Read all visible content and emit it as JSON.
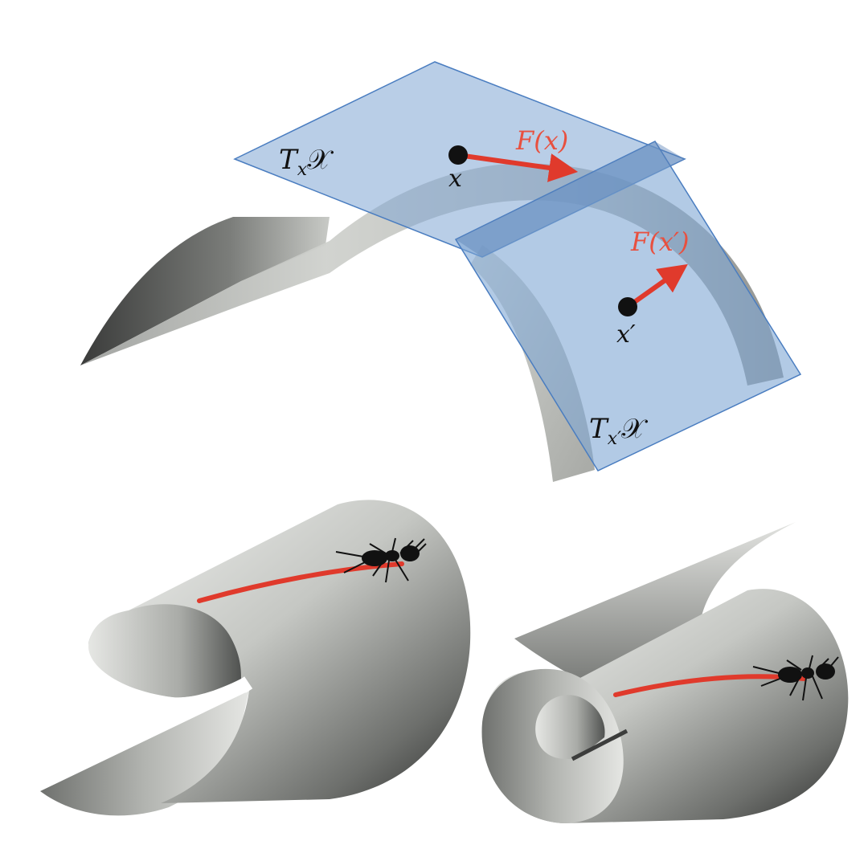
{
  "labels": {
    "tangent_space_x": "T",
    "tangent_space_x_sub": "x",
    "tangent_space_x_set": "𝒳",
    "tangent_space_xp": "T",
    "tangent_space_xp_sub": "x′",
    "tangent_space_xp_set": "𝒳",
    "point_x": "x",
    "point_xp": "x′",
    "vector_x": "F(x)",
    "vector_xp": "F(x′)"
  },
  "colors": {
    "surface_light": "#d9dad6",
    "surface_dark": "#2e2f2e",
    "plane_fill": "#7fa6d4",
    "plane_edge": "#4a7dc0",
    "vector": "#e03a2c",
    "label_red": "#e8503f",
    "path": "#e03a2c",
    "point": "#111111"
  },
  "icons": {
    "ant_top": "ant-icon",
    "ant_bottom_right": "ant-icon"
  }
}
